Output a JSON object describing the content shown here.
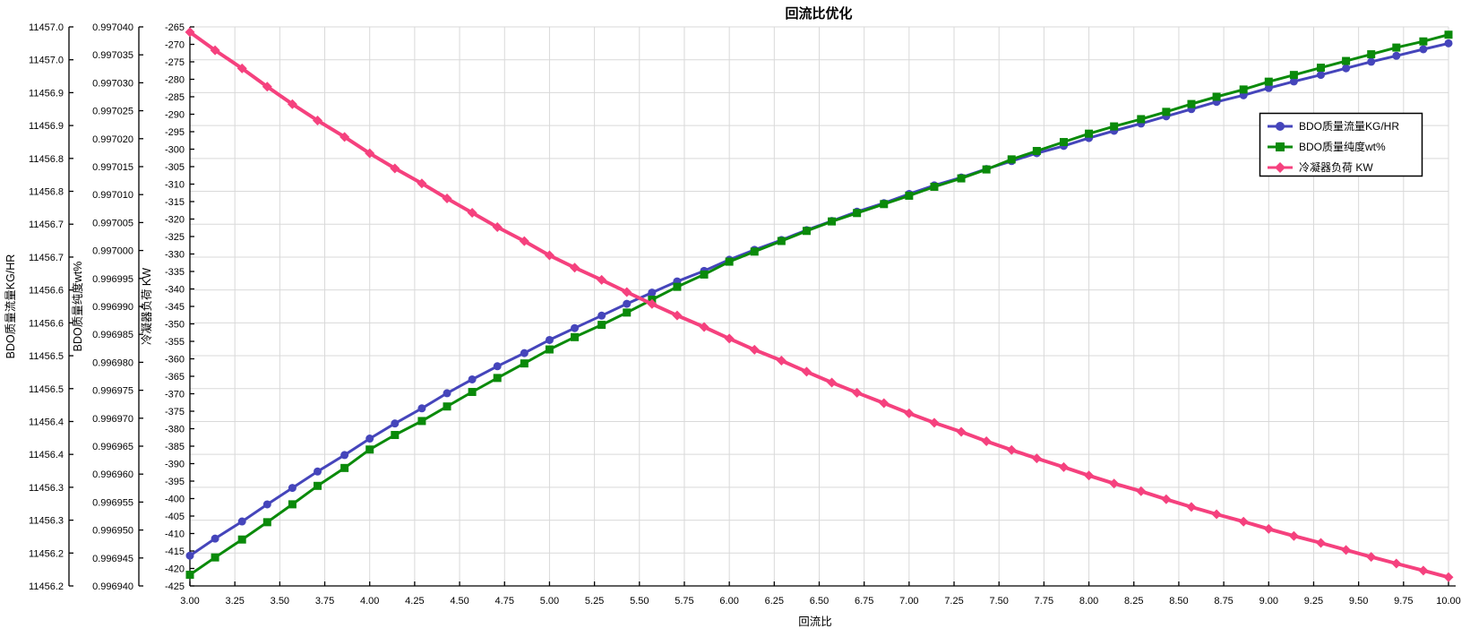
{
  "window": {
    "background": "#ffffff"
  },
  "chart_data": {
    "type": "line",
    "title": "回流比优化",
    "xlabel": "回流比",
    "xlim": [
      3,
      10
    ],
    "grid": true,
    "grid_color": "#d9d9d9",
    "axis_color": "#000000",
    "legend_position": "upper right",
    "x_ticks": [
      "3.00",
      "3.25",
      "3.50",
      "3.75",
      "4.00",
      "4.25",
      "4.50",
      "4.75",
      "5.00",
      "5.25",
      "5.50",
      "5.75",
      "6.00",
      "6.25",
      "6.50",
      "6.75",
      "7.00",
      "7.25",
      "7.50",
      "7.75",
      "8.00",
      "8.25",
      "8.50",
      "8.75",
      "9.00",
      "9.25",
      "9.50",
      "9.75",
      "10.00"
    ],
    "axes": [
      {
        "title": "BDO质量流量KG/HR",
        "min": 11456.2,
        "max": 11457.05,
        "ticks": [
          "11457.0",
          "11457.0",
          "11456.9",
          "11456.9",
          "11456.8",
          "11456.8",
          "11456.7",
          "11456.7",
          "11456.6",
          "11456.6",
          "11456.5",
          "11456.5",
          "11456.4",
          "11456.4",
          "11456.3",
          "11456.3",
          "11456.2",
          "11456.2"
        ]
      },
      {
        "title": "BDO质量纯度wt%",
        "min": 0.99694,
        "max": 0.99704,
        "ticks": [
          "0.997040",
          "0.997035",
          "0.997030",
          "0.997025",
          "0.997020",
          "0.997015",
          "0.997010",
          "0.997005",
          "0.997000",
          "0.996995",
          "0.996990",
          "0.996985",
          "0.996980",
          "0.996975",
          "0.996970",
          "0.996965",
          "0.996960",
          "0.996955",
          "0.996950",
          "0.996945",
          "0.996940"
        ]
      },
      {
        "title": "冷凝器负荷 KW",
        "min": -425,
        "max": -265,
        "ticks": [
          "-265",
          "-270",
          "-275",
          "-280",
          "-285",
          "-290",
          "-295",
          "-300",
          "-305",
          "-310",
          "-315",
          "-320",
          "-325",
          "-330",
          "-335",
          "-340",
          "-345",
          "-350",
          "-355",
          "-360",
          "-365",
          "-370",
          "-375",
          "-380",
          "-385",
          "-390",
          "-395",
          "-400",
          "-405",
          "-410",
          "-415",
          "-420",
          "-425"
        ]
      }
    ],
    "x": [
      3.0,
      3.14,
      3.29,
      3.43,
      3.57,
      3.71,
      3.86,
      4.0,
      4.14,
      4.29,
      4.43,
      4.57,
      4.71,
      4.86,
      5.0,
      5.14,
      5.29,
      5.43,
      5.57,
      5.71,
      5.86,
      6.0,
      6.14,
      6.29,
      6.43,
      6.57,
      6.71,
      6.86,
      7.0,
      7.14,
      7.29,
      7.43,
      7.57,
      7.71,
      7.86,
      8.0,
      8.14,
      8.29,
      8.43,
      8.57,
      8.71,
      8.86,
      9.0,
      9.14,
      9.29,
      9.43,
      9.57,
      9.71,
      9.86,
      10.0
    ],
    "series": [
      {
        "name": "BDO质量流量KG/HR",
        "axis": 0,
        "color": "#4545bb",
        "marker": "circle",
        "values": [
          11456.246,
          11456.272,
          11456.298,
          11456.324,
          11456.349,
          11456.374,
          11456.399,
          11456.424,
          11456.447,
          11456.47,
          11456.493,
          11456.514,
          11456.534,
          11456.554,
          11456.574,
          11456.592,
          11456.611,
          11456.629,
          11456.646,
          11456.663,
          11456.679,
          11456.696,
          11456.711,
          11456.726,
          11456.741,
          11456.755,
          11456.769,
          11456.782,
          11456.796,
          11456.809,
          11456.821,
          11456.834,
          11456.846,
          11456.858,
          11456.869,
          11456.881,
          11456.892,
          11456.903,
          11456.914,
          11456.925,
          11456.936,
          11456.946,
          11456.957,
          11456.967,
          11456.977,
          11456.987,
          11456.997,
          11457.006,
          11457.016,
          11457.025
        ]
      },
      {
        "name": "BDO质量纯度wt%",
        "axis": 1,
        "color": "#0a8a0a",
        "marker": "square",
        "values": [
          0.996942,
          0.9969451,
          0.9969483,
          0.9969514,
          0.9969546,
          0.9969579,
          0.9969611,
          0.9969644,
          0.996967,
          0.9969695,
          0.9969721,
          0.9969747,
          0.9969772,
          0.9969798,
          0.9969823,
          0.9969845,
          0.9969867,
          0.9969889,
          0.9969912,
          0.9969935,
          0.9969957,
          0.996998,
          0.9969998,
          0.9970017,
          0.9970035,
          0.9970052,
          0.9970067,
          0.9970083,
          0.9970098,
          0.9970114,
          0.9970129,
          0.9970145,
          0.9970163,
          0.9970178,
          0.9970194,
          0.9970209,
          0.9970222,
          0.9970235,
          0.9970248,
          0.9970262,
          0.9970275,
          0.9970288,
          0.9970302,
          0.9970314,
          0.9970327,
          0.9970339,
          0.9970351,
          0.9970363,
          0.9970374,
          0.9970386
        ]
      },
      {
        "name": "冷凝器负荷 KW",
        "axis": 2,
        "color": "#f5417e",
        "marker": "diamond",
        "values": [
          -266.5,
          -271.7,
          -276.9,
          -282.1,
          -287.1,
          -291.8,
          -296.5,
          -301.2,
          -305.5,
          -309.8,
          -314.1,
          -318.2,
          -322.3,
          -326.3,
          -330.4,
          -333.9,
          -337.4,
          -340.9,
          -344.3,
          -347.6,
          -350.9,
          -354.2,
          -357.4,
          -360.5,
          -363.7,
          -366.8,
          -369.7,
          -372.7,
          -375.6,
          -378.3,
          -380.9,
          -383.6,
          -386.1,
          -388.5,
          -391.0,
          -393.4,
          -395.7,
          -397.9,
          -400.2,
          -402.4,
          -404.5,
          -406.6,
          -408.7,
          -410.7,
          -412.7,
          -414.7,
          -416.7,
          -418.6,
          -420.6,
          -422.5
        ]
      }
    ]
  }
}
